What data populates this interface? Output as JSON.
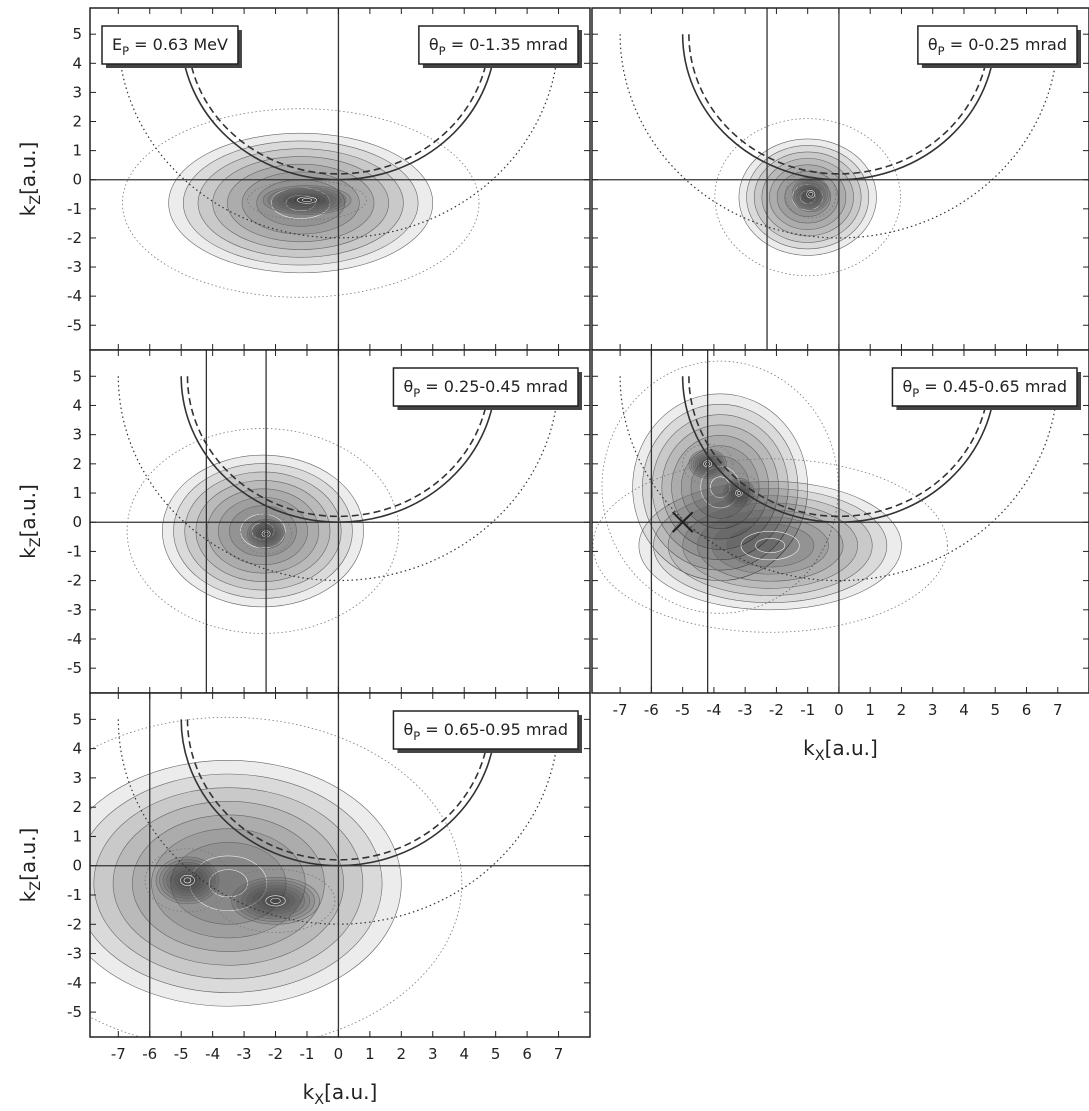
{
  "chart_data": [
    {
      "type": "contour",
      "labels": [
        {
          "symbol": "E",
          "sub": "P",
          "text": " = 0.63 MeV",
          "corner": "top-left"
        },
        {
          "symbol": "θ",
          "sub": "P",
          "text": " = 0-1.35 mrad",
          "corner": "top-right"
        }
      ],
      "ylabel": {
        "symbol": "k",
        "sub": "Z",
        "unit": "[a.u.]"
      },
      "xlim": [
        -7.9,
        8
      ],
      "ylim": [
        -5.85,
        5.9
      ],
      "xticks": [
        -7,
        -6,
        -5,
        -4,
        -3,
        -2,
        -1,
        0,
        1,
        2,
        3,
        4,
        5,
        6,
        7
      ],
      "yticks": [
        -5,
        -4,
        -3,
        -2,
        -1,
        0,
        1,
        2,
        3,
        4,
        5
      ],
      "vlines": [
        0
      ],
      "hlines": [
        0
      ],
      "arcs": [
        {
          "cx": 0,
          "cy": 5,
          "r": 5,
          "style": "solid"
        },
        {
          "cx": 0,
          "cy": 5,
          "r": 4.8,
          "style": "dashed"
        },
        {
          "cx": 0,
          "cy": 5,
          "r": 7,
          "style": "dotted"
        }
      ],
      "peaks": [
        {
          "x": -1.2,
          "y": -0.8,
          "sx": 4.2,
          "sy": 2.4
        },
        {
          "x": -1,
          "y": -0.7,
          "sx": 1.4,
          "sy": 0.5
        }
      ]
    },
    {
      "type": "contour",
      "labels": [
        {
          "symbol": "θ",
          "sub": "P",
          "text": " = 0-0.25 mrad",
          "corner": "top-right"
        }
      ],
      "xlim": [
        -7.9,
        8
      ],
      "ylim": [
        -5.85,
        5.9
      ],
      "xticks": [
        -7,
        -6,
        -5,
        -4,
        -3,
        -2,
        -1,
        0,
        1,
        2,
        3,
        4,
        5,
        6,
        7
      ],
      "yticks": [
        -5,
        -4,
        -3,
        -2,
        -1,
        0,
        1,
        2,
        3,
        4,
        5
      ],
      "vlines": [
        -2.3,
        0
      ],
      "hlines": [
        0
      ],
      "arcs": [
        {
          "cx": 0,
          "cy": 5,
          "r": 5,
          "style": "solid"
        },
        {
          "cx": 0,
          "cy": 5,
          "r": 4.8,
          "style": "dashed"
        },
        {
          "cx": 0,
          "cy": 5,
          "r": 7,
          "style": "dotted"
        }
      ],
      "peaks": [
        {
          "x": -1,
          "y": -0.6,
          "sx": 2.2,
          "sy": 2.0
        },
        {
          "x": -0.9,
          "y": -0.5,
          "sx": 0.6,
          "sy": 0.6
        }
      ]
    },
    {
      "type": "contour",
      "labels": [
        {
          "symbol": "θ",
          "sub": "P",
          "text": " = 0.25-0.45 mrad",
          "corner": "top-right"
        }
      ],
      "ylabel": {
        "symbol": "k",
        "sub": "Z",
        "unit": "[a.u.]"
      },
      "xlim": [
        -7.9,
        8
      ],
      "ylim": [
        -5.85,
        5.9
      ],
      "xticks": [
        -7,
        -6,
        -5,
        -4,
        -3,
        -2,
        -1,
        0,
        1,
        2,
        3,
        4,
        5,
        6,
        7
      ],
      "yticks": [
        -5,
        -4,
        -3,
        -2,
        -1,
        0,
        1,
        2,
        3,
        4,
        5
      ],
      "vlines": [
        -4.2,
        -2.3,
        0
      ],
      "hlines": [
        0
      ],
      "arcs": [
        {
          "cx": 0,
          "cy": 5,
          "r": 5,
          "style": "solid"
        },
        {
          "cx": 0,
          "cy": 5,
          "r": 4.8,
          "style": "dashed"
        },
        {
          "cx": 0,
          "cy": 5,
          "r": 7,
          "style": "dotted"
        }
      ],
      "peaks": [
        {
          "x": -2.4,
          "y": -0.3,
          "sx": 3.2,
          "sy": 2.6
        },
        {
          "x": -2.3,
          "y": -0.4,
          "sx": 0.6,
          "sy": 0.5
        }
      ]
    },
    {
      "type": "contour",
      "labels": [
        {
          "symbol": "θ",
          "sub": "P",
          "text": " = 0.45-0.65 mrad",
          "corner": "top-right"
        }
      ],
      "xlabel": {
        "symbol": "k",
        "sub": "X",
        "unit": "[a.u.]"
      },
      "xlim": [
        -7.9,
        8
      ],
      "ylim": [
        -5.85,
        5.9
      ],
      "xticks": [
        -7,
        -6,
        -5,
        -4,
        -3,
        -2,
        -1,
        0,
        1,
        2,
        3,
        4,
        5,
        6,
        7
      ],
      "yticks": [
        -5,
        -4,
        -3,
        -2,
        -1,
        0,
        1,
        2,
        3,
        4,
        5
      ],
      "vlines": [
        -6,
        -4.2,
        0
      ],
      "hlines": [
        0
      ],
      "arcs": [
        {
          "cx": 0,
          "cy": 5,
          "r": 5,
          "style": "solid"
        },
        {
          "cx": 0,
          "cy": 5,
          "r": 4.8,
          "style": "dashed"
        },
        {
          "cx": 0,
          "cy": 5,
          "r": 7,
          "style": "dotted"
        }
      ],
      "markers": [
        {
          "x": -5,
          "y": 0
        }
      ],
      "peaks": [
        {
          "x": -3.8,
          "y": 1.2,
          "sx": 2.8,
          "sy": 3.2
        },
        {
          "x": -2.2,
          "y": -0.8,
          "sx": 4.2,
          "sy": 2.2
        },
        {
          "x": -4.2,
          "y": 2,
          "sx": 0.6,
          "sy": 0.5
        },
        {
          "x": -3.2,
          "y": 1,
          "sx": 0.5,
          "sy": 0.5
        }
      ]
    },
    {
      "type": "contour",
      "labels": [
        {
          "symbol": "θ",
          "sub": "P",
          "text": " = 0.65-0.95 mrad",
          "corner": "top-right"
        }
      ],
      "xlabel": {
        "symbol": "k",
        "sub": "X",
        "unit": "[a.u.]"
      },
      "ylabel": {
        "symbol": "k",
        "sub": "Z",
        "unit": "[a.u.]"
      },
      "xlim": [
        -7.9,
        8
      ],
      "ylim": [
        -5.85,
        5.9
      ],
      "xticks": [
        -7,
        -6,
        -5,
        -4,
        -3,
        -2,
        -1,
        0,
        1,
        2,
        3,
        4,
        5,
        6,
        7
      ],
      "yticks": [
        -5,
        -4,
        -3,
        -2,
        -1,
        0,
        1,
        2,
        3,
        4,
        5
      ],
      "vlines": [
        -6,
        0
      ],
      "hlines": [
        0
      ],
      "arcs": [
        {
          "cx": 0,
          "cy": 5,
          "r": 5,
          "style": "solid"
        },
        {
          "cx": 0,
          "cy": 5,
          "r": 4.8,
          "style": "dashed"
        },
        {
          "cx": 0,
          "cy": 5,
          "r": 7,
          "style": "dotted"
        }
      ],
      "peaks": [
        {
          "x": -3.5,
          "y": -0.6,
          "sx": 5.5,
          "sy": 4.2
        },
        {
          "x": -4.8,
          "y": -0.5,
          "sx": 1.0,
          "sy": 0.8
        },
        {
          "x": -2,
          "y": -1.2,
          "sx": 1.4,
          "sy": 0.8
        }
      ]
    }
  ]
}
